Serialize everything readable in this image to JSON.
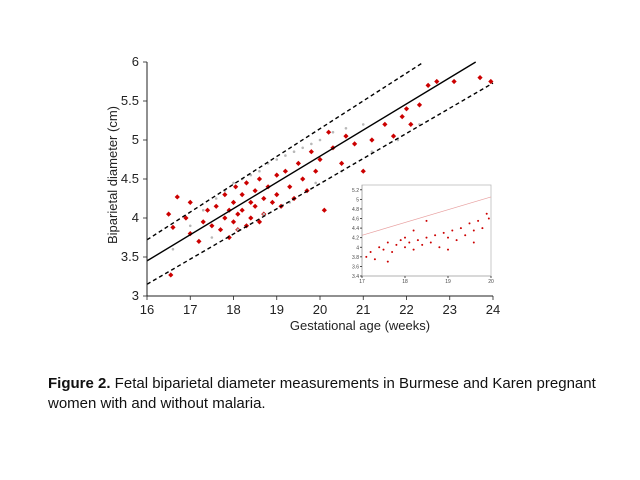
{
  "chart_data": [
    {
      "type": "scatter",
      "title": "",
      "xlabel": "Gestational age (weeks)",
      "ylabel": "Biparietal diameter (cm)",
      "xlim": [
        16,
        24
      ],
      "ylim": [
        3,
        6
      ],
      "xticks": [
        "16",
        "17",
        "18",
        "19",
        "20",
        "21",
        "22",
        "23",
        "24"
      ],
      "yticks": [
        "3",
        "3.5",
        "4",
        "4.5",
        "5",
        "5.5",
        "6"
      ],
      "grid": false,
      "legend": "none",
      "lines": [
        {
          "style": "solid",
          "x": [
            16,
            23.6
          ],
          "y": [
            3.45,
            6.0
          ]
        },
        {
          "style": "dashed",
          "x": [
            16,
            22.4
          ],
          "y": [
            3.72,
            6.0
          ]
        },
        {
          "style": "dashed",
          "x": [
            16,
            24
          ],
          "y": [
            3.15,
            5.73
          ]
        }
      ],
      "series": [
        {
          "color": "#cc0000",
          "marker": "diamond",
          "points": [
            [
              16.5,
              4.05
            ],
            [
              16.55,
              3.27
            ],
            [
              16.6,
              3.88
            ],
            [
              16.7,
              4.27
            ],
            [
              16.9,
              4.0
            ],
            [
              17.0,
              3.8
            ],
            [
              17.0,
              4.2
            ],
            [
              17.2,
              3.7
            ],
            [
              17.3,
              3.95
            ],
            [
              17.4,
              4.1
            ],
            [
              17.5,
              3.9
            ],
            [
              17.6,
              4.15
            ],
            [
              17.7,
              3.85
            ],
            [
              17.8,
              4.0
            ],
            [
              17.8,
              4.3
            ],
            [
              17.9,
              4.1
            ],
            [
              17.9,
              3.75
            ],
            [
              18.0,
              4.2
            ],
            [
              18.0,
              3.95
            ],
            [
              18.05,
              4.4
            ],
            [
              18.1,
              4.05
            ],
            [
              18.1,
              3.85
            ],
            [
              18.2,
              4.3
            ],
            [
              18.2,
              4.1
            ],
            [
              18.3,
              3.9
            ],
            [
              18.3,
              4.45
            ],
            [
              18.4,
              4.2
            ],
            [
              18.4,
              4.0
            ],
            [
              18.5,
              4.35
            ],
            [
              18.5,
              4.15
            ],
            [
              18.6,
              3.95
            ],
            [
              18.6,
              4.5
            ],
            [
              18.7,
              4.25
            ],
            [
              18.7,
              4.05
            ],
            [
              18.8,
              4.4
            ],
            [
              18.9,
              4.2
            ],
            [
              19.0,
              4.55
            ],
            [
              19.0,
              4.3
            ],
            [
              19.1,
              4.15
            ],
            [
              19.2,
              4.6
            ],
            [
              19.3,
              4.4
            ],
            [
              19.4,
              4.25
            ],
            [
              19.5,
              4.7
            ],
            [
              19.6,
              4.5
            ],
            [
              19.7,
              4.35
            ],
            [
              19.8,
              4.85
            ],
            [
              19.9,
              4.6
            ],
            [
              20.0,
              4.75
            ],
            [
              20.1,
              4.1
            ],
            [
              20.2,
              5.1
            ],
            [
              20.3,
              4.9
            ],
            [
              20.5,
              4.7
            ],
            [
              20.6,
              5.05
            ],
            [
              20.8,
              4.95
            ],
            [
              21.0,
              4.6
            ],
            [
              21.2,
              5.0
            ],
            [
              21.5,
              5.2
            ],
            [
              21.7,
              5.05
            ],
            [
              21.9,
              5.3
            ],
            [
              22.0,
              5.4
            ],
            [
              22.1,
              5.2
            ],
            [
              22.3,
              5.45
            ],
            [
              22.5,
              5.7
            ],
            [
              22.7,
              5.75
            ],
            [
              23.1,
              5.75
            ],
            [
              23.7,
              5.8
            ],
            [
              23.95,
              5.75
            ]
          ]
        },
        {
          "color": "#b8b8b8",
          "marker": "dot",
          "points": [
            [
              16.6,
              3.6
            ],
            [
              17.0,
              3.9
            ],
            [
              17.3,
              4.1
            ],
            [
              17.6,
              4.25
            ],
            [
              17.8,
              4.35
            ],
            [
              18.0,
              4.45
            ],
            [
              18.2,
              4.5
            ],
            [
              18.4,
              4.55
            ],
            [
              18.6,
              4.6
            ],
            [
              18.8,
              4.7
            ],
            [
              19.0,
              4.75
            ],
            [
              19.2,
              4.8
            ],
            [
              19.4,
              4.85
            ],
            [
              19.6,
              4.9
            ],
            [
              19.8,
              4.95
            ],
            [
              20.0,
              5.0
            ],
            [
              20.3,
              5.1
            ],
            [
              20.6,
              5.15
            ],
            [
              21.0,
              5.2
            ],
            [
              17.5,
              3.75
            ],
            [
              18.1,
              3.85
            ],
            [
              18.7,
              4.05
            ],
            [
              19.3,
              4.2
            ],
            [
              19.9,
              4.45
            ],
            [
              20.5,
              4.6
            ],
            [
              21.2,
              4.85
            ],
            [
              21.8,
              5.0
            ],
            [
              22.3,
              5.2
            ]
          ]
        }
      ]
    },
    {
      "type": "scatter",
      "title": "",
      "xticks": [
        "17",
        "18",
        "19",
        "20"
      ],
      "yticks": [
        "3.4",
        "3.6",
        "3.8",
        "4",
        "4.2",
        "4.4",
        "4.6",
        "4.8",
        "5",
        "5.2"
      ],
      "xlim": [
        17,
        20
      ],
      "ylim": [
        3.4,
        5.3
      ],
      "grid": false,
      "lines": [
        {
          "style": "solid",
          "color": "#e8a0a0",
          "x": [
            17,
            20
          ],
          "y": [
            4.25,
            5.05
          ]
        }
      ],
      "series": [
        {
          "color": "#cc0000",
          "marker": "dot",
          "points": [
            [
              17.1,
              3.8
            ],
            [
              17.2,
              3.9
            ],
            [
              17.3,
              3.75
            ],
            [
              17.4,
              4.0
            ],
            [
              17.5,
              3.95
            ],
            [
              17.6,
              4.1
            ],
            [
              17.7,
              3.9
            ],
            [
              17.8,
              4.05
            ],
            [
              17.9,
              4.15
            ],
            [
              18.0,
              4.0
            ],
            [
              18.0,
              4.2
            ],
            [
              18.1,
              4.1
            ],
            [
              18.2,
              3.95
            ],
            [
              18.3,
              4.15
            ],
            [
              18.4,
              4.05
            ],
            [
              18.5,
              4.2
            ],
            [
              18.6,
              4.1
            ],
            [
              18.7,
              4.25
            ],
            [
              18.8,
              4.0
            ],
            [
              18.9,
              4.3
            ],
            [
              19.0,
              4.2
            ],
            [
              19.1,
              4.35
            ],
            [
              19.2,
              4.15
            ],
            [
              19.3,
              4.4
            ],
            [
              19.4,
              4.25
            ],
            [
              19.5,
              4.5
            ],
            [
              19.6,
              4.35
            ],
            [
              19.7,
              4.55
            ],
            [
              19.8,
              4.4
            ],
            [
              19.9,
              4.7
            ],
            [
              19.95,
              4.6
            ],
            [
              18.5,
              4.55
            ],
            [
              18.2,
              4.35
            ],
            [
              17.6,
              3.7
            ],
            [
              19.0,
              3.95
            ],
            [
              19.6,
              4.1
            ]
          ]
        }
      ]
    }
  ],
  "caption": {
    "label": "Figure 2.",
    "text": " Fetal biparietal diameter measurements in Burmese and Karen pregnant women with and without malaria."
  }
}
